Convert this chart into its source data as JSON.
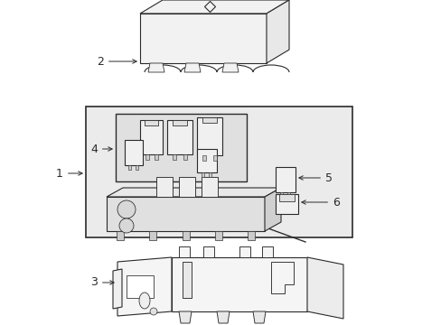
{
  "bg_color": "#ffffff",
  "line_color": "#2a2a2a",
  "fill_light": "#f2f2f2",
  "fill_mid": "#e8e8e8",
  "fill_dark": "#d8d8d8",
  "fig_width": 4.89,
  "fig_height": 3.6,
  "dpi": 100
}
